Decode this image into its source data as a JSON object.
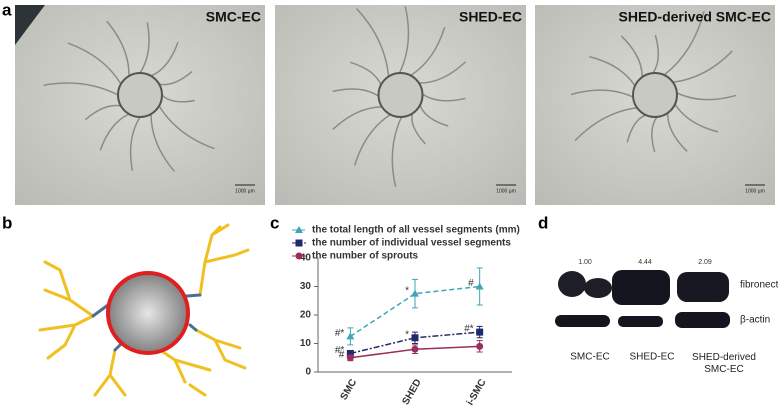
{
  "panel_labels": [
    "a",
    "b",
    "c",
    "d"
  ],
  "micrographs": [
    {
      "label": "SMC-EC",
      "scale_bar": "1000 µm"
    },
    {
      "label": "SHED-EC",
      "scale_bar": "1000 µm"
    },
    {
      "label": "SHED-derived SMC-EC",
      "scale_bar": "1000 µm"
    }
  ],
  "chart_data": {
    "type": "line",
    "categories": [
      "SMC",
      "SHED",
      "i-SMC"
    ],
    "series": [
      {
        "name": "the total length of all vessel segments (mm)",
        "color": "#3ea6b6",
        "marker": "triangle",
        "dash": "5,3",
        "values": [
          12.5,
          27.5,
          30
        ],
        "errors": [
          3,
          5,
          6.5
        ],
        "annotations": [
          "#*",
          "*",
          "#"
        ]
      },
      {
        "name": "the number of individual vessel segments",
        "color": "#1f2a6b",
        "marker": "square",
        "dash": "6,2,2,2",
        "values": [
          6.5,
          12,
          14
        ],
        "errors": [
          1,
          2,
          2
        ],
        "annotations": [
          "#*",
          "*",
          "#*"
        ]
      },
      {
        "name": "the number of sprouts",
        "color": "#9b2d5a",
        "marker": "circle",
        "dash": "none",
        "values": [
          5,
          8,
          9
        ],
        "errors": [
          1,
          1.5,
          2
        ],
        "annotations": [
          "#",
          "",
          ""
        ]
      }
    ],
    "ylim": [
      0,
      40
    ],
    "yticks": [
      0,
      10,
      20,
      30,
      40
    ],
    "grid": false
  },
  "blot": {
    "ratios": [
      "1.00",
      "4.44",
      "2.09"
    ],
    "proteins": [
      "fibronectin",
      "β-actin"
    ],
    "lanes": [
      "SMC-EC",
      "SHED-EC",
      "SHED-derived SMC-EC"
    ]
  }
}
